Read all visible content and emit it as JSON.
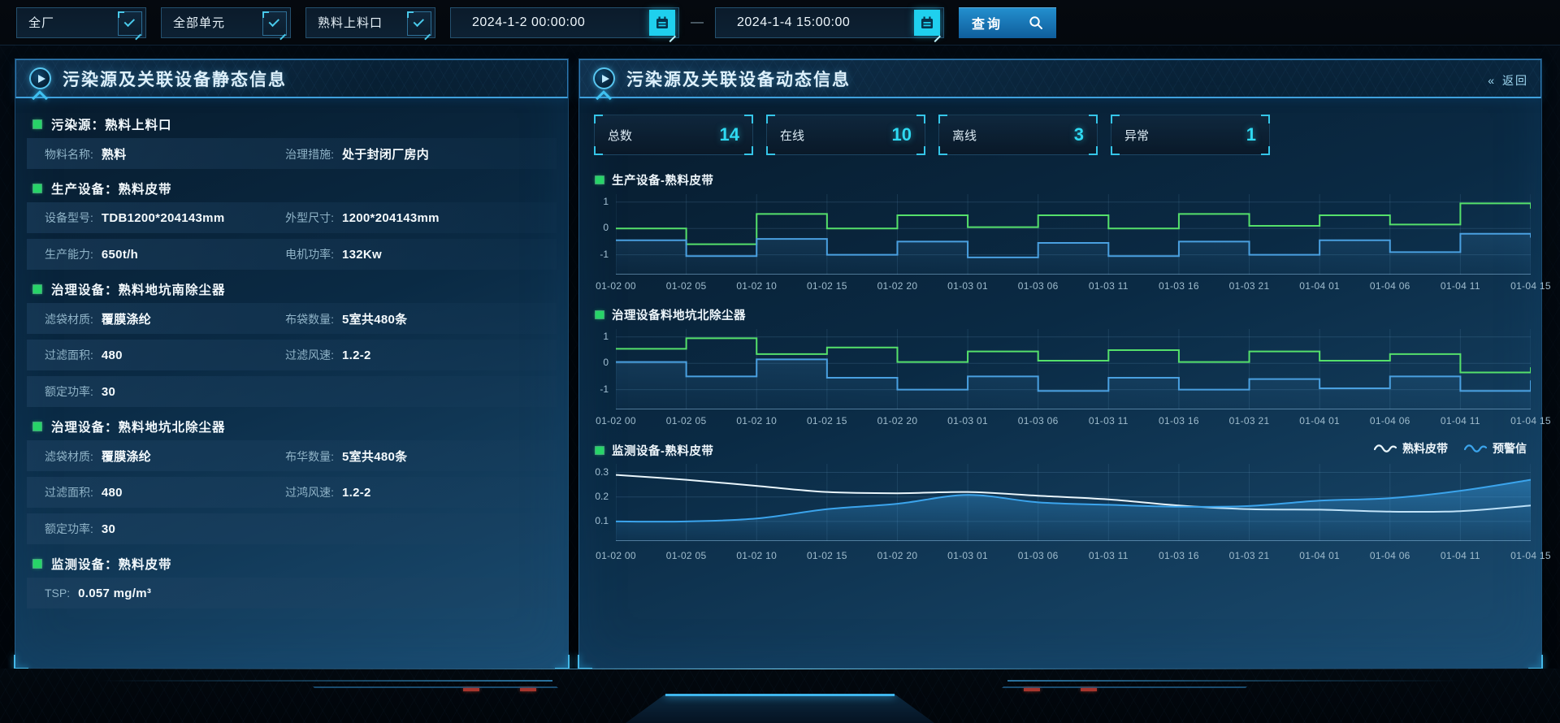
{
  "topbar": {
    "selects": [
      "全厂",
      "全部单元",
      "熟料上料口"
    ],
    "date_from": "2024-1-2 00:00:00",
    "date_to": "2024-1-4 15:00:00",
    "range_separator": "—",
    "query_label": "查询"
  },
  "left_panel": {
    "title": "污染源及关联设备静态信息",
    "sections": [
      {
        "header": "污染源：熟料上料口",
        "rows": [
          [
            {
              "label": "物料名称:",
              "value": "熟料"
            },
            {
              "label": "治理措施:",
              "value": "处于封闭厂房内"
            }
          ]
        ]
      },
      {
        "header": "生产设备：熟料皮带",
        "rows": [
          [
            {
              "label": "设备型号:",
              "value": "TDB1200*204143mm"
            },
            {
              "label": "外型尺寸:",
              "value": "1200*204143mm"
            }
          ],
          [
            {
              "label": "生产能力:",
              "value": "650t/h"
            },
            {
              "label": "电机功率:",
              "value": "132Kw"
            }
          ]
        ]
      },
      {
        "header": "治理设备：熟料地坑南除尘器",
        "rows": [
          [
            {
              "label": "滤袋材质:",
              "value": "覆膜涤纶"
            },
            {
              "label": "布袋数量:",
              "value": "5室共480条"
            }
          ],
          [
            {
              "label": "过滤面积:",
              "value": "480"
            },
            {
              "label": "过滤风速:",
              "value": "1.2-2"
            }
          ],
          [
            {
              "label": "额定功率:",
              "value": "30"
            }
          ]
        ]
      },
      {
        "header": "治理设备：熟料地坑北除尘器",
        "rows": [
          [
            {
              "label": "滤袋材质:",
              "value": "覆膜涤纶"
            },
            {
              "label": "布华数量:",
              "value": "5室共480条"
            }
          ],
          [
            {
              "label": "过滤面积:",
              "value": "480"
            },
            {
              "label": "过鸿风速:",
              "value": "1.2-2"
            }
          ],
          [
            {
              "label": "额定功率:",
              "value": "30"
            }
          ]
        ]
      },
      {
        "header": "监测设备：熟料皮带",
        "rows": [
          [
            {
              "label": "TSP:",
              "value": "0.057 mg/m³"
            }
          ]
        ]
      }
    ]
  },
  "right_panel": {
    "title": "污染源及关联设备动态信息",
    "back_icon": "«",
    "back_label": "返回",
    "stats": [
      {
        "label": "总数",
        "value": "14"
      },
      {
        "label": "在线",
        "value": "10"
      },
      {
        "label": "离线",
        "value": "3"
      },
      {
        "label": "异常",
        "value": "1"
      }
    ]
  },
  "colors": {
    "accent_cyan": "#2fd9f2",
    "accent_green": "#27d468",
    "chart_green": "#55e06b",
    "chart_blue": "#4aa0e0",
    "monitor_white": "#e9f5fb",
    "warn_blue": "#3ba4ec"
  },
  "chart_data": [
    {
      "type": "line",
      "step": true,
      "title": "生产设备-熟料皮带",
      "categories": [
        "01-02 00",
        "01-02 05",
        "01-02 10",
        "01-02 15",
        "01-02 20",
        "01-03 01",
        "01-03 06",
        "01-03 11",
        "01-03 16",
        "01-03 21",
        "01-04 01",
        "01-04 06",
        "01-04 11",
        "01-04 15"
      ],
      "yticks": [
        1,
        0,
        -1
      ],
      "ylim": [
        -1.75,
        1.3
      ],
      "series": [
        {
          "name": "green",
          "color": "#55e06b",
          "values": [
            0,
            -0.6,
            0.55,
            0,
            0.5,
            0.05,
            0.5,
            0,
            0.55,
            0.1,
            0.5,
            0.15,
            0.95,
            0.75
          ]
        },
        {
          "name": "blue",
          "color": "#4aa0e0",
          "area": true,
          "values": [
            -0.45,
            -1.05,
            -0.4,
            -1,
            -0.5,
            -1.1,
            -0.55,
            -1.05,
            -0.5,
            -1,
            -0.45,
            -0.9,
            -0.2,
            -0.35
          ]
        }
      ]
    },
    {
      "type": "line",
      "step": true,
      "title": "治理设备料地坑北除尘器",
      "categories": [
        "01-02 00",
        "01-02 05",
        "01-02 10",
        "01-02 15",
        "01-02 20",
        "01-03 01",
        "01-03 06",
        "01-03 11",
        "01-03 16",
        "01-03 21",
        "01-04 01",
        "01-04 06",
        "01-04 11",
        "01-04 15"
      ],
      "yticks": [
        1,
        0,
        -1
      ],
      "ylim": [
        -1.75,
        1.3
      ],
      "series": [
        {
          "name": "green",
          "color": "#55e06b",
          "values": [
            0.55,
            0.95,
            0.35,
            0.6,
            0.05,
            0.45,
            0.1,
            0.5,
            0.05,
            0.45,
            0.1,
            0.35,
            -0.35,
            -0.15
          ]
        },
        {
          "name": "blue",
          "color": "#4aa0e0",
          "area": true,
          "values": [
            0.05,
            -0.5,
            0.15,
            -0.55,
            -1,
            -0.5,
            -1.05,
            -0.55,
            -1,
            -0.6,
            -0.95,
            -0.5,
            -1.05,
            -0.65
          ]
        }
      ]
    },
    {
      "type": "line",
      "smooth": true,
      "title": "监测设备-熟料皮带",
      "categories": [
        "01-02 00",
        "01-02 05",
        "01-02 10",
        "01-02 15",
        "01-02 20",
        "01-03 01",
        "01-03 06",
        "01-03 11",
        "01-03 16",
        "01-03 21",
        "01-04 01",
        "01-04 06",
        "01-04 11",
        "01-04 15"
      ],
      "yticks": [
        0.3,
        0.2,
        0.1
      ],
      "ylim": [
        0.02,
        0.335
      ],
      "legend": [
        {
          "label": "熟料皮带",
          "color": "#e9f5fb"
        },
        {
          "label": "预警信",
          "color": "#3ba4ec"
        }
      ],
      "series": [
        {
          "name": "熟料皮带",
          "color": "#e9f5fb",
          "values": [
            0.29,
            0.27,
            0.245,
            0.22,
            0.215,
            0.22,
            0.205,
            0.19,
            0.165,
            0.15,
            0.148,
            0.14,
            0.142,
            0.165
          ]
        },
        {
          "name": "预警信",
          "color": "#3ba4ec",
          "area": true,
          "values": [
            0.1,
            0.1,
            0.112,
            0.15,
            0.172,
            0.208,
            0.178,
            0.168,
            0.16,
            0.163,
            0.185,
            0.195,
            0.225,
            0.27
          ]
        }
      ]
    }
  ]
}
